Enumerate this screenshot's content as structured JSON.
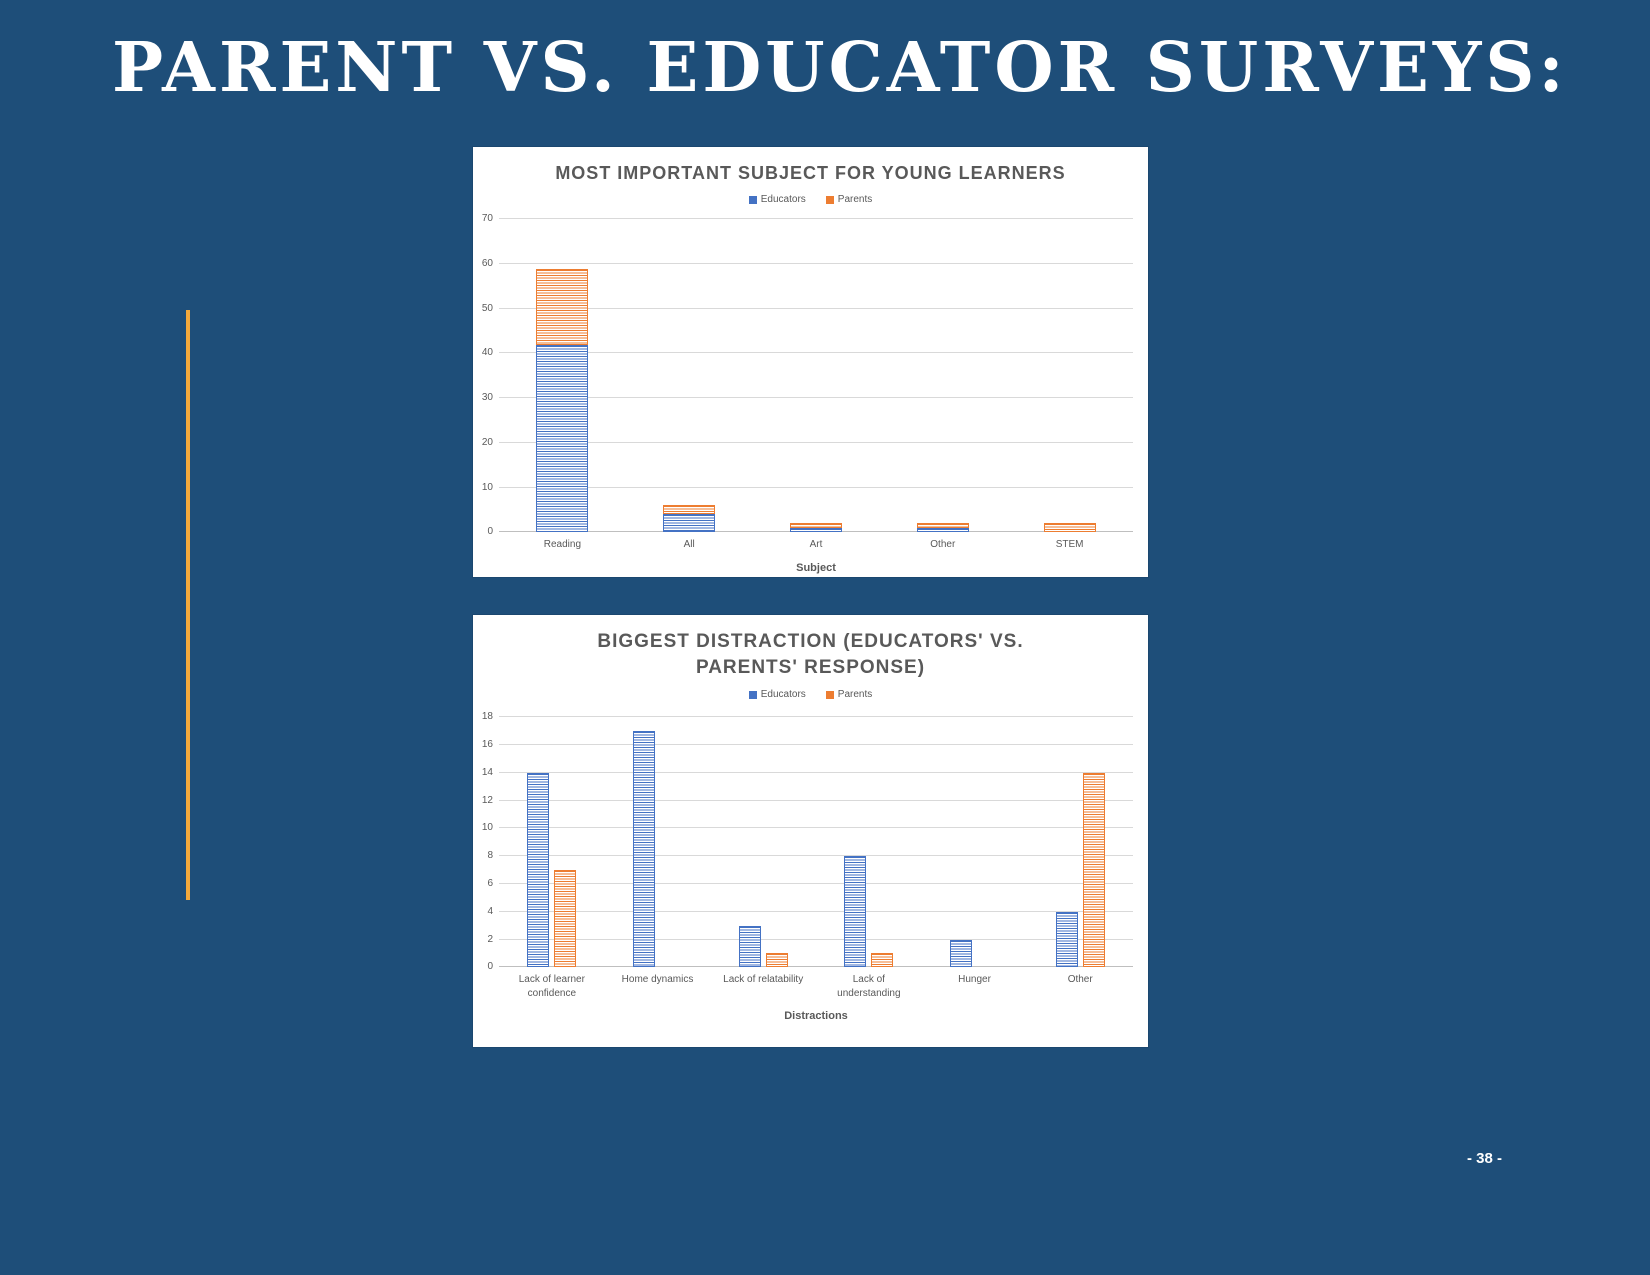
{
  "slide": {
    "title": "PARENT VS. EDUCATOR SURVEYS:",
    "page_number": "- 38 -",
    "background_color": "#1e4e79",
    "accent_bar_color": "#f3a93c"
  },
  "chart_data": [
    {
      "type": "bar",
      "stacked": true,
      "title": "MOST IMPORTANT SUBJECT FOR YOUNG LEARNERS",
      "categories": [
        "Reading",
        "All",
        "Art",
        "Other",
        "STEM"
      ],
      "series": [
        {
          "name": "Educators",
          "color": "#4472c4",
          "values": [
            42,
            4,
            1,
            1,
            0
          ]
        },
        {
          "name": "Parents",
          "color": "#ed7d31",
          "values": [
            17,
            2,
            1,
            1,
            2
          ]
        }
      ],
      "xlabel": "Subject",
      "ylabel": "",
      "ylim": [
        0,
        70
      ],
      "ytick_step": 10,
      "grid": true,
      "legend_position": "top"
    },
    {
      "type": "bar",
      "stacked": false,
      "title": "BIGGEST DISTRACTION (EDUCATORS' VS. PARENTS' RESPONSE)",
      "categories": [
        "Lack of learner confidence",
        "Home dynamics",
        "Lack of relatability",
        "Lack of understanding",
        "Hunger",
        "Other"
      ],
      "series": [
        {
          "name": "Educators",
          "color": "#4472c4",
          "values": [
            14,
            17,
            3,
            8,
            2,
            4
          ]
        },
        {
          "name": "Parents",
          "color": "#ed7d31",
          "values": [
            7,
            0,
            1,
            1,
            0,
            14
          ]
        }
      ],
      "xlabel": "Distractions",
      "ylabel": "",
      "ylim": [
        0,
        18
      ],
      "ytick_step": 2,
      "grid": true,
      "legend_position": "top"
    }
  ]
}
